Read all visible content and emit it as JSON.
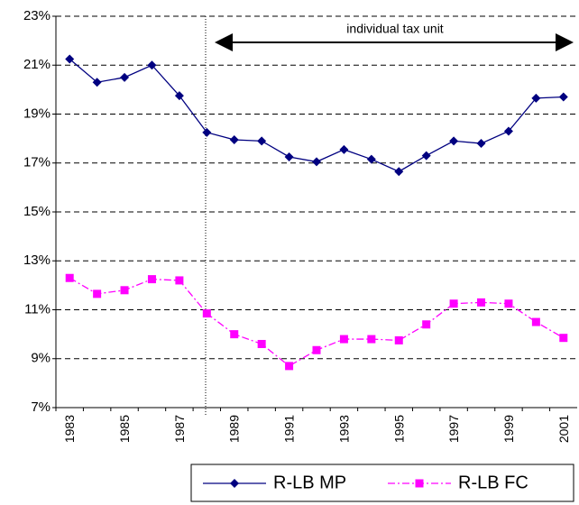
{
  "chart_data": {
    "type": "line",
    "annotation": "individual tax unit",
    "categories": [
      "1983",
      null,
      "1985",
      null,
      "1987",
      null,
      "1989",
      null,
      "1991",
      null,
      "1993",
      null,
      "1995",
      null,
      "1997",
      null,
      "1999",
      null,
      "2001"
    ],
    "series": [
      {
        "name": "R-LB MP",
        "color": "#000080",
        "marker": "diamond",
        "dash": "solid",
        "values": [
          21.25,
          20.3,
          20.5,
          21.0,
          19.75,
          18.25,
          17.95,
          17.9,
          17.25,
          17.05,
          17.55,
          17.15,
          16.65,
          17.3,
          17.9,
          17.8,
          18.3,
          19.65,
          19.7
        ]
      },
      {
        "name": "R-LB FC",
        "color": "#ff00ff",
        "marker": "square",
        "dash": "dashdot",
        "values": [
          12.3,
          11.65,
          11.8,
          12.25,
          12.2,
          10.85,
          10.0,
          9.6,
          8.7,
          9.35,
          9.8,
          9.8,
          9.75,
          10.4,
          11.25,
          11.3,
          11.25,
          10.5,
          9.85
        ]
      }
    ],
    "ylim": [
      7,
      23
    ],
    "yticks": [
      {
        "value": 7,
        "label": "7%"
      },
      {
        "value": 9,
        "label": "9%"
      },
      {
        "value": 11,
        "label": "11%"
      },
      {
        "value": 13,
        "label": "13%"
      },
      {
        "value": 15,
        "label": "15%"
      },
      {
        "value": 17,
        "label": "17%"
      },
      {
        "value": 19,
        "label": "19%"
      },
      {
        "value": 21,
        "label": "21%"
      },
      {
        "value": 23,
        "label": "23%"
      }
    ],
    "grid": true,
    "legend": "bottom"
  }
}
